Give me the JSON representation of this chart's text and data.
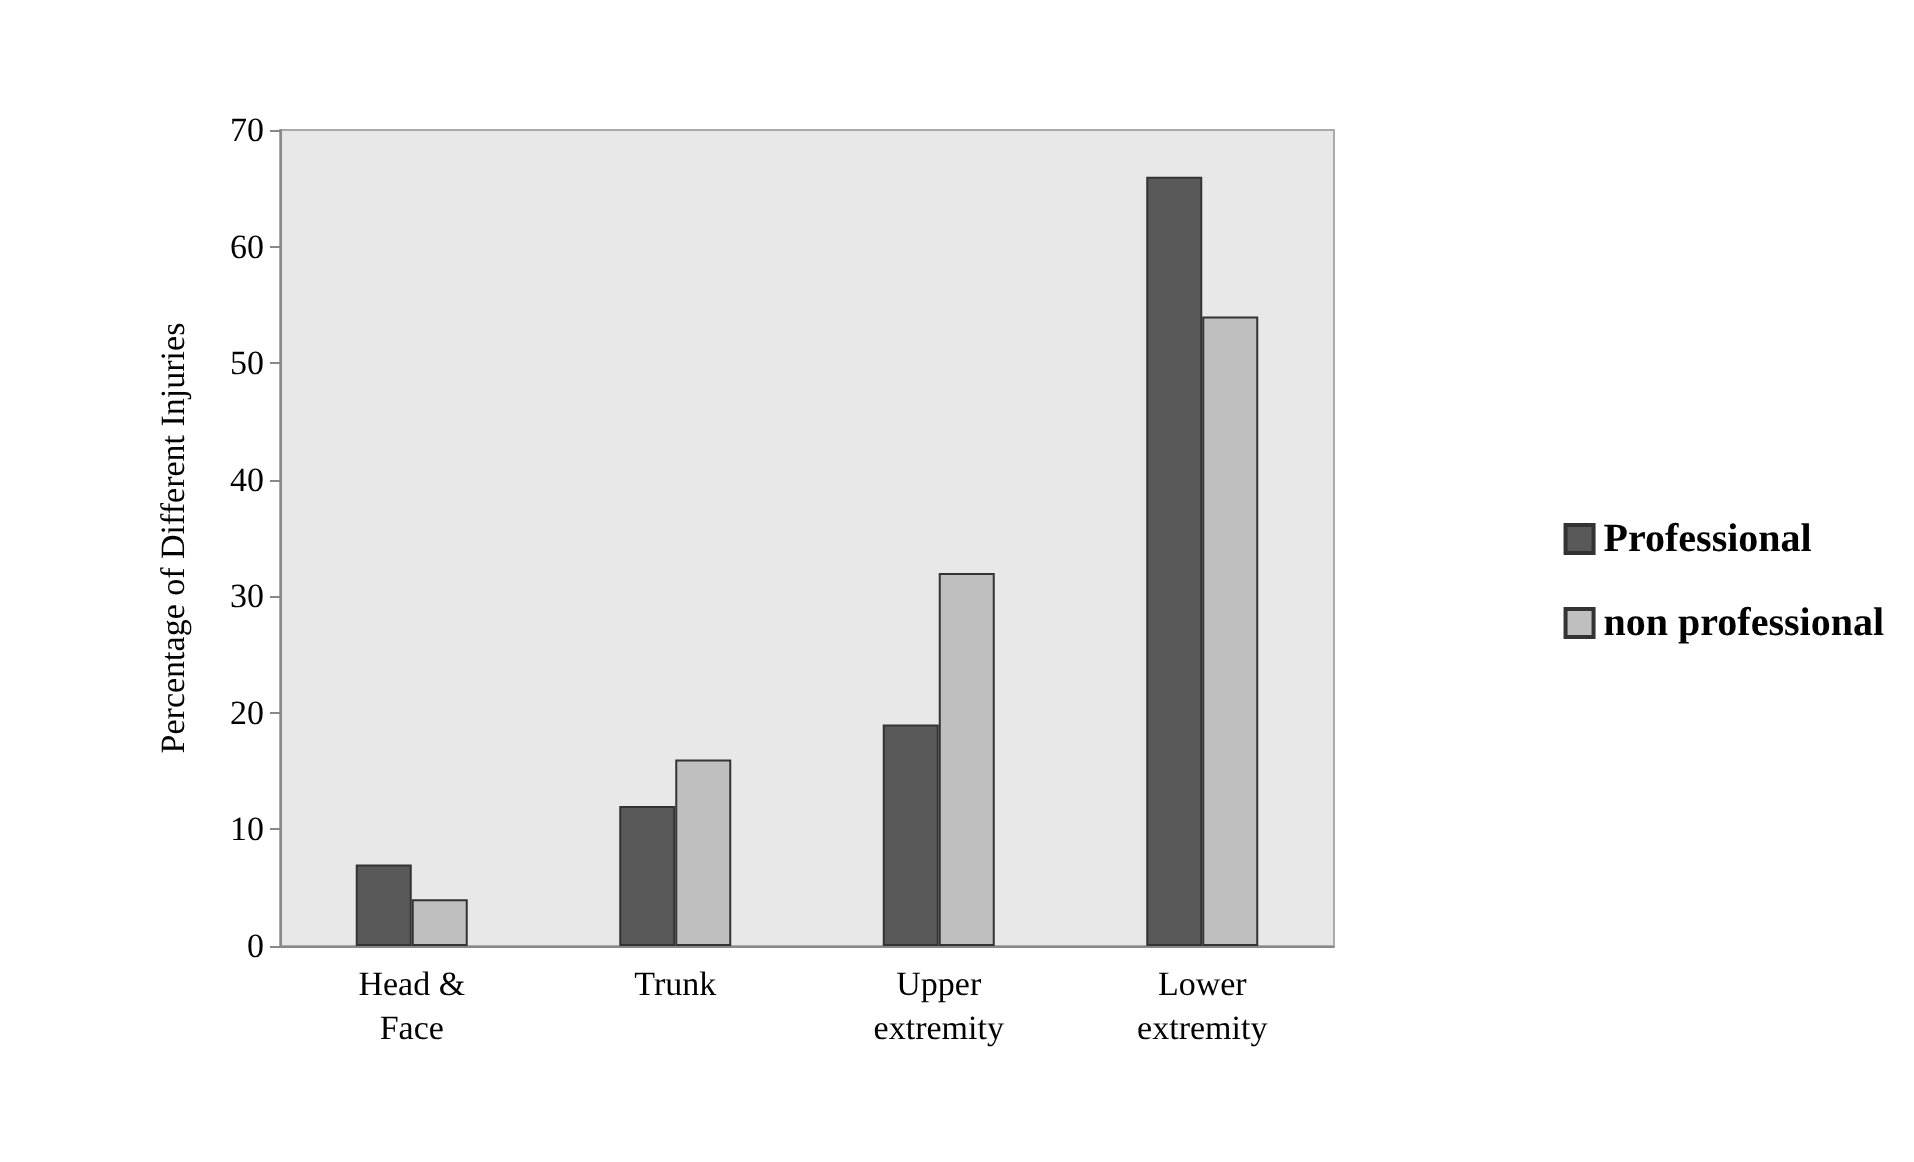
{
  "chart_data": {
    "type": "bar",
    "ylabel": "Percentage of Different Injuries",
    "categories": [
      "Head &\nFace",
      "Trunk",
      "Upper\nextremity",
      "Lower\nextremity"
    ],
    "series": [
      {
        "name": "Professional",
        "color": "#595959",
        "values": [
          7,
          12,
          19,
          66
        ]
      },
      {
        "name": "non professional",
        "color": "#bfbfbf",
        "values": [
          4,
          16,
          32,
          54
        ]
      }
    ],
    "ylim": [
      0,
      70
    ],
    "yticks": [
      0,
      10,
      20,
      30,
      40,
      50,
      60,
      70
    ],
    "grid": false,
    "legend": "right"
  }
}
